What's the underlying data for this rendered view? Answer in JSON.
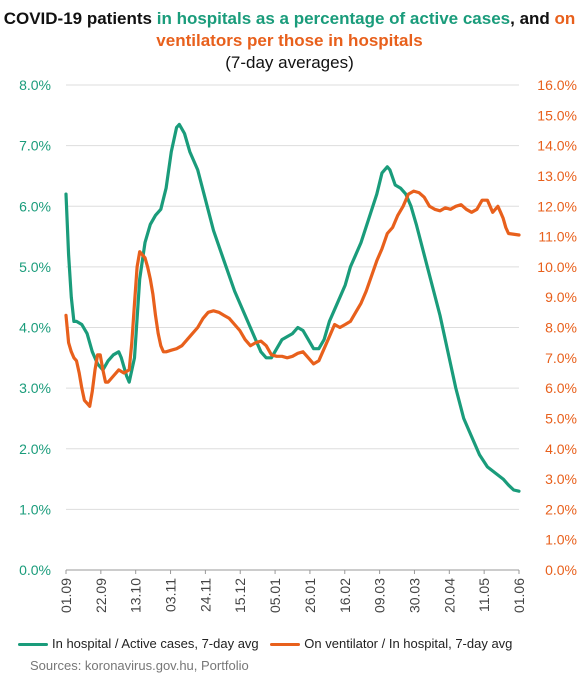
{
  "title": {
    "part1": "COVID-19 patients ",
    "part2": "in hospitals as a percentage of active cases",
    "part3": ", and ",
    "part4": "on ventilators per those in hospitals",
    "subtitle": "(7-day averages)"
  },
  "colors": {
    "hospital": "#1a9c7b",
    "ventilator": "#e8601c"
  },
  "legend": {
    "hospital": "In hospital / Active cases, 7-day avg",
    "ventilator": "On ventilator / In hospital, 7-day avg"
  },
  "source": "Sources: koronavirus.gov.hu, Portfolio",
  "chart_data": {
    "type": "line",
    "x_ticks": [
      "01.09",
      "22.09",
      "13.10",
      "03.11",
      "24.11",
      "15.12",
      "05.01",
      "26.01",
      "16.02",
      "09.03",
      "30.03",
      "20.04",
      "11.05",
      "01.06"
    ],
    "y_left": {
      "ticks": [
        "0.0%",
        "1.0%",
        "2.0%",
        "3.0%",
        "4.0%",
        "5.0%",
        "6.0%",
        "7.0%",
        "8.0%"
      ],
      "range": [
        0,
        8
      ]
    },
    "y_right": {
      "ticks": [
        "0.0%",
        "1.0%",
        "2.0%",
        "3.0%",
        "4.0%",
        "5.0%",
        "6.0%",
        "7.0%",
        "8.0%",
        "9.0%",
        "10.0%",
        "11.0%",
        "12.0%",
        "13.0%",
        "14.0%",
        "15.0%",
        "16.0%"
      ],
      "range": [
        0,
        16
      ]
    },
    "series": [
      {
        "name": "In hospital / Active cases, 7-day avg",
        "axis": "left",
        "points": [
          [
            0,
            6.2
          ],
          [
            1,
            5.2
          ],
          [
            2,
            4.5
          ],
          [
            3,
            4.1
          ],
          [
            4,
            4.1
          ],
          [
            6,
            4.05
          ],
          [
            8,
            3.9
          ],
          [
            10,
            3.6
          ],
          [
            12,
            3.4
          ],
          [
            14,
            3.3
          ],
          [
            16,
            3.45
          ],
          [
            18,
            3.55
          ],
          [
            20,
            3.6
          ],
          [
            21,
            3.5
          ],
          [
            23,
            3.2
          ],
          [
            24,
            3.1
          ],
          [
            26,
            3.5
          ],
          [
            28,
            4.8
          ],
          [
            30,
            5.4
          ],
          [
            32,
            5.7
          ],
          [
            34,
            5.85
          ],
          [
            36,
            5.95
          ],
          [
            38,
            6.3
          ],
          [
            40,
            6.9
          ],
          [
            42,
            7.3
          ],
          [
            43,
            7.35
          ],
          [
            45,
            7.2
          ],
          [
            47,
            6.9
          ],
          [
            50,
            6.6
          ],
          [
            53,
            6.1
          ],
          [
            56,
            5.6
          ],
          [
            60,
            5.1
          ],
          [
            64,
            4.6
          ],
          [
            68,
            4.2
          ],
          [
            72,
            3.8
          ],
          [
            74,
            3.6
          ],
          [
            76,
            3.5
          ],
          [
            78,
            3.5
          ],
          [
            80,
            3.65
          ],
          [
            82,
            3.8
          ],
          [
            84,
            3.85
          ],
          [
            86,
            3.9
          ],
          [
            88,
            4.0
          ],
          [
            90,
            3.95
          ],
          [
            92,
            3.8
          ],
          [
            94,
            3.65
          ],
          [
            96,
            3.65
          ],
          [
            98,
            3.8
          ],
          [
            100,
            4.1
          ],
          [
            103,
            4.4
          ],
          [
            106,
            4.7
          ],
          [
            108,
            5.0
          ],
          [
            110,
            5.2
          ],
          [
            112,
            5.4
          ],
          [
            115,
            5.8
          ],
          [
            118,
            6.2
          ],
          [
            120,
            6.55
          ],
          [
            122,
            6.65
          ],
          [
            123,
            6.6
          ],
          [
            125,
            6.35
          ],
          [
            127,
            6.3
          ],
          [
            129,
            6.2
          ],
          [
            131,
            6.0
          ],
          [
            133,
            5.7
          ],
          [
            136,
            5.2
          ],
          [
            139,
            4.7
          ],
          [
            142,
            4.2
          ],
          [
            145,
            3.6
          ],
          [
            148,
            3.0
          ],
          [
            151,
            2.5
          ],
          [
            154,
            2.2
          ],
          [
            157,
            1.9
          ],
          [
            160,
            1.7
          ],
          [
            163,
            1.6
          ],
          [
            166,
            1.5
          ],
          [
            168,
            1.4
          ],
          [
            170,
            1.32
          ],
          [
            172,
            1.3
          ]
        ]
      },
      {
        "name": "On ventilator / In hospital, 7-day avg",
        "axis": "right",
        "points": [
          [
            0,
            8.4
          ],
          [
            1,
            7.5
          ],
          [
            2,
            7.2
          ],
          [
            3,
            7.0
          ],
          [
            4,
            6.9
          ],
          [
            5,
            6.5
          ],
          [
            6,
            6.0
          ],
          [
            7,
            5.6
          ],
          [
            8,
            5.5
          ],
          [
            9,
            5.4
          ],
          [
            10,
            5.9
          ],
          [
            11,
            6.6
          ],
          [
            12,
            7.1
          ],
          [
            13,
            7.1
          ],
          [
            14,
            6.6
          ],
          [
            15,
            6.2
          ],
          [
            16,
            6.2
          ],
          [
            17,
            6.3
          ],
          [
            18,
            6.4
          ],
          [
            20,
            6.6
          ],
          [
            22,
            6.5
          ],
          [
            24,
            6.6
          ],
          [
            25,
            7.5
          ],
          [
            26,
            8.8
          ],
          [
            27,
            10.0
          ],
          [
            28,
            10.5
          ],
          [
            29,
            10.4
          ],
          [
            30,
            10.3
          ],
          [
            31,
            10.0
          ],
          [
            32,
            9.6
          ],
          [
            33,
            9.1
          ],
          [
            34,
            8.4
          ],
          [
            35,
            7.8
          ],
          [
            36,
            7.4
          ],
          [
            37,
            7.2
          ],
          [
            38,
            7.2
          ],
          [
            40,
            7.25
          ],
          [
            42,
            7.3
          ],
          [
            44,
            7.4
          ],
          [
            46,
            7.6
          ],
          [
            48,
            7.8
          ],
          [
            50,
            8.0
          ],
          [
            52,
            8.3
          ],
          [
            54,
            8.5
          ],
          [
            56,
            8.55
          ],
          [
            58,
            8.5
          ],
          [
            60,
            8.4
          ],
          [
            62,
            8.3
          ],
          [
            64,
            8.1
          ],
          [
            66,
            7.9
          ],
          [
            68,
            7.6
          ],
          [
            70,
            7.4
          ],
          [
            72,
            7.5
          ],
          [
            74,
            7.55
          ],
          [
            76,
            7.4
          ],
          [
            78,
            7.1
          ],
          [
            80,
            7.05
          ],
          [
            82,
            7.05
          ],
          [
            84,
            7.0
          ],
          [
            86,
            7.05
          ],
          [
            88,
            7.15
          ],
          [
            90,
            7.2
          ],
          [
            92,
            7.0
          ],
          [
            94,
            6.8
          ],
          [
            96,
            6.9
          ],
          [
            98,
            7.3
          ],
          [
            100,
            7.7
          ],
          [
            102,
            8.1
          ],
          [
            104,
            8.0
          ],
          [
            106,
            8.1
          ],
          [
            108,
            8.2
          ],
          [
            110,
            8.5
          ],
          [
            112,
            8.8
          ],
          [
            114,
            9.2
          ],
          [
            116,
            9.7
          ],
          [
            118,
            10.2
          ],
          [
            120,
            10.6
          ],
          [
            122,
            11.1
          ],
          [
            124,
            11.3
          ],
          [
            126,
            11.7
          ],
          [
            128,
            12.0
          ],
          [
            130,
            12.4
          ],
          [
            132,
            12.5
          ],
          [
            134,
            12.45
          ],
          [
            136,
            12.3
          ],
          [
            138,
            12.0
          ],
          [
            140,
            11.9
          ],
          [
            142,
            11.85
          ],
          [
            144,
            11.95
          ],
          [
            146,
            11.9
          ],
          [
            148,
            12.0
          ],
          [
            150,
            12.05
          ],
          [
            152,
            11.9
          ],
          [
            154,
            11.8
          ],
          [
            156,
            11.9
          ],
          [
            158,
            12.2
          ],
          [
            160,
            12.2
          ],
          [
            162,
            11.8
          ],
          [
            163,
            11.9
          ],
          [
            164,
            12.0
          ],
          [
            165,
            11.8
          ],
          [
            166,
            11.6
          ],
          [
            167,
            11.3
          ],
          [
            168,
            11.1
          ],
          [
            172,
            11.05
          ]
        ]
      }
    ]
  }
}
